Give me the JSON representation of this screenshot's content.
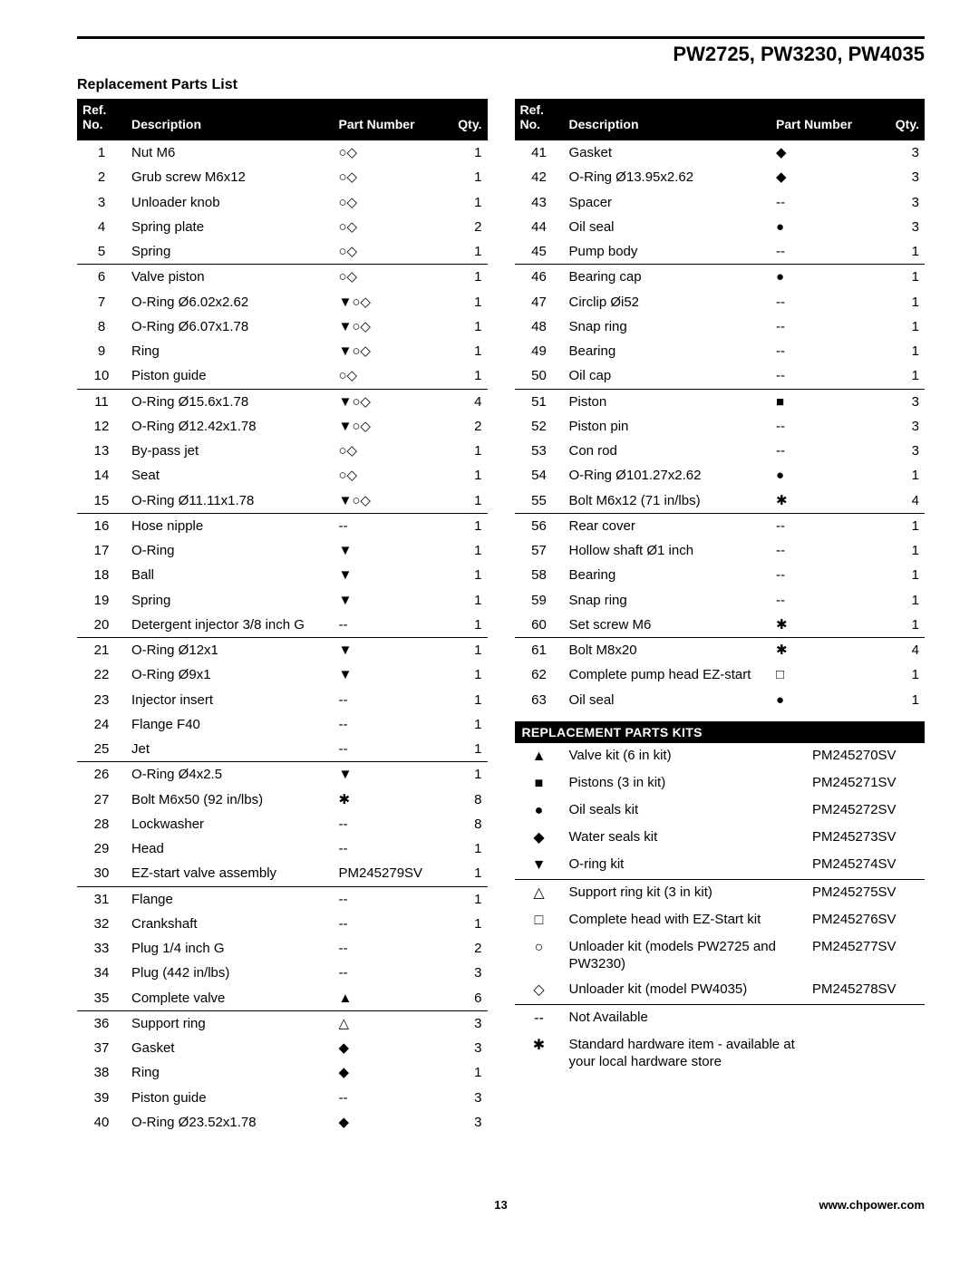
{
  "header": {
    "models": "PW2725, PW3230, PW4035"
  },
  "section": {
    "title": "Replacement Parts List"
  },
  "colhdr": {
    "ref_line1": "Ref.",
    "ref_line2": "No.",
    "desc": "Description",
    "part": "Part Number",
    "qty": "Qty."
  },
  "left": {
    "rows": [
      {
        "n": "1",
        "d": "Nut M6",
        "p": "○◇",
        "q": "1"
      },
      {
        "n": "2",
        "d": "Grub screw M6x12",
        "p": "○◇",
        "q": "1"
      },
      {
        "n": "3",
        "d": "Unloader knob",
        "p": "○◇",
        "q": "1"
      },
      {
        "n": "4",
        "d": "Spring plate",
        "p": "○◇",
        "q": "2"
      },
      {
        "n": "5",
        "d": "Spring",
        "p": "○◇",
        "q": "1",
        "sep": true
      },
      {
        "n": "6",
        "d": "Valve piston",
        "p": "○◇",
        "q": "1"
      },
      {
        "n": "7",
        "d": "O-Ring Ø6.02x2.62",
        "p": "▼○◇",
        "q": "1"
      },
      {
        "n": "8",
        "d": "O-Ring Ø6.07x1.78",
        "p": "▼○◇",
        "q": "1"
      },
      {
        "n": "9",
        "d": "Ring",
        "p": "▼○◇",
        "q": "1"
      },
      {
        "n": "10",
        "d": "Piston guide",
        "p": "○◇",
        "q": "1",
        "sep": true
      },
      {
        "n": "11",
        "d": "O-Ring Ø15.6x1.78",
        "p": "▼○◇",
        "q": "4"
      },
      {
        "n": "12",
        "d": "O-Ring Ø12.42x1.78",
        "p": "▼○◇",
        "q": "2"
      },
      {
        "n": "13",
        "d": "By-pass jet",
        "p": "○◇",
        "q": "1"
      },
      {
        "n": "14",
        "d": "Seat",
        "p": "○◇",
        "q": "1"
      },
      {
        "n": "15",
        "d": "O-Ring Ø11.11x1.78",
        "p": "▼○◇",
        "q": "1",
        "sep": true
      },
      {
        "n": "16",
        "d": "Hose nipple",
        "p": "--",
        "q": "1"
      },
      {
        "n": "17",
        "d": "O-Ring",
        "p": "▼",
        "q": "1"
      },
      {
        "n": "18",
        "d": "Ball",
        "p": "▼",
        "q": "1"
      },
      {
        "n": "19",
        "d": "Spring",
        "p": "▼",
        "q": "1"
      },
      {
        "n": "20",
        "d": "Detergent injector 3/8 inch G",
        "p": "--",
        "q": "1",
        "sep": true
      },
      {
        "n": "21",
        "d": "O-Ring Ø12x1",
        "p": "▼",
        "q": "1"
      },
      {
        "n": "22",
        "d": "O-Ring Ø9x1",
        "p": "▼",
        "q": "1"
      },
      {
        "n": "23",
        "d": "Injector insert",
        "p": "--",
        "q": "1"
      },
      {
        "n": "24",
        "d": "Flange F40",
        "p": "--",
        "q": "1"
      },
      {
        "n": "25",
        "d": "Jet",
        "p": "--",
        "q": "1",
        "sep": true
      },
      {
        "n": "26",
        "d": "O-Ring Ø4x2.5",
        "p": "▼",
        "q": "1"
      },
      {
        "n": "27",
        "d": "Bolt M6x50 (92 in/lbs)",
        "p": "✱",
        "q": "8"
      },
      {
        "n": "28",
        "d": "Lockwasher",
        "p": "--",
        "q": "8"
      },
      {
        "n": "29",
        "d": "Head",
        "p": "--",
        "q": "1"
      },
      {
        "n": "30",
        "d": "EZ-start valve assembly",
        "p": "PM245279SV",
        "q": "1",
        "sep": true
      },
      {
        "n": "31",
        "d": "Flange",
        "p": "--",
        "q": "1"
      },
      {
        "n": "32",
        "d": "Crankshaft",
        "p": "--",
        "q": "1"
      },
      {
        "n": "33",
        "d": "Plug 1/4 inch G",
        "p": "--",
        "q": "2"
      },
      {
        "n": "34",
        "d": "Plug (442 in/lbs)",
        "p": "--",
        "q": "3"
      },
      {
        "n": "35",
        "d": "Complete valve",
        "p": "▲",
        "q": "6",
        "sep": true
      },
      {
        "n": "36",
        "d": "Support ring",
        "p": "△",
        "q": "3"
      },
      {
        "n": "37",
        "d": "Gasket",
        "p": "◆",
        "q": "3"
      },
      {
        "n": "38",
        "d": "Ring",
        "p": "◆",
        "q": "1"
      },
      {
        "n": "39",
        "d": "Piston guide",
        "p": "--",
        "q": "3"
      },
      {
        "n": "40",
        "d": "O-Ring Ø23.52x1.78",
        "p": "◆",
        "q": "3"
      }
    ]
  },
  "right": {
    "rows": [
      {
        "n": "41",
        "d": "Gasket",
        "p": "◆",
        "q": "3"
      },
      {
        "n": "42",
        "d": "O-Ring Ø13.95x2.62",
        "p": "◆",
        "q": "3"
      },
      {
        "n": "43",
        "d": "Spacer",
        "p": "--",
        "q": "3"
      },
      {
        "n": "44",
        "d": "Oil seal",
        "p": "●",
        "q": "3"
      },
      {
        "n": "45",
        "d": "Pump body",
        "p": "--",
        "q": "1",
        "sep": true
      },
      {
        "n": "46",
        "d": "Bearing cap",
        "p": "●",
        "q": "1"
      },
      {
        "n": "47",
        "d": "Circlip Øi52",
        "p": "--",
        "q": "1"
      },
      {
        "n": "48",
        "d": "Snap ring",
        "p": "--",
        "q": "1"
      },
      {
        "n": "49",
        "d": "Bearing",
        "p": "--",
        "q": "1"
      },
      {
        "n": "50",
        "d": "Oil cap",
        "p": "--",
        "q": "1",
        "sep": true
      },
      {
        "n": "51",
        "d": "Piston",
        "p": "■",
        "q": "3"
      },
      {
        "n": "52",
        "d": "Piston pin",
        "p": "--",
        "q": "3"
      },
      {
        "n": "53",
        "d": "Con rod",
        "p": "--",
        "q": "3"
      },
      {
        "n": "54",
        "d": "O-Ring Ø101.27x2.62",
        "p": "●",
        "q": "1"
      },
      {
        "n": "55",
        "d": "Bolt M6x12 (71 in/lbs)",
        "p": "✱",
        "q": "4",
        "sep": true
      },
      {
        "n": "56",
        "d": "Rear cover",
        "p": "--",
        "q": "1"
      },
      {
        "n": "57",
        "d": "Hollow shaft Ø1 inch",
        "p": "--",
        "q": "1"
      },
      {
        "n": "58",
        "d": "Bearing",
        "p": "--",
        "q": "1"
      },
      {
        "n": "59",
        "d": "Snap ring",
        "p": "--",
        "q": "1"
      },
      {
        "n": "60",
        "d": "Set screw M6",
        "p": "✱",
        "q": "1",
        "sep": true
      },
      {
        "n": "61",
        "d": "Bolt M8x20",
        "p": "✱",
        "q": "4"
      },
      {
        "n": "62",
        "d": "Complete pump head EZ-start",
        "p": "□",
        "q": "1"
      },
      {
        "n": "63",
        "d": "Oil seal",
        "p": "●",
        "q": "1"
      }
    ]
  },
  "kits": {
    "title": "REPLACEMENT PARTS KITS",
    "rows": [
      {
        "s": "▲",
        "d": "Valve kit (6 in kit)",
        "p": "PM245270SV"
      },
      {
        "s": "■",
        "d": "Pistons (3 in kit)",
        "p": "PM245271SV"
      },
      {
        "s": "●",
        "d": "Oil seals kit",
        "p": "PM245272SV"
      },
      {
        "s": "◆",
        "d": "Water seals kit",
        "p": "PM245273SV"
      },
      {
        "s": "▼",
        "d": "O-ring kit",
        "p": "PM245274SV",
        "sep": true
      },
      {
        "s": "△",
        "d": "Support ring kit (3 in kit)",
        "p": "PM245275SV"
      },
      {
        "s": "□",
        "d": "Complete head with EZ-Start kit",
        "p": "PM245276SV"
      },
      {
        "s": "○",
        "d": "Unloader kit (models PW2725 and PW3230)",
        "p": "PM245277SV"
      },
      {
        "s": "◇",
        "d": "Unloader kit (model PW4035)",
        "p": "PM245278SV",
        "sep": true
      },
      {
        "s": "--",
        "d": "Not Available",
        "p": ""
      },
      {
        "s": "✱",
        "d": "Standard hardware item - available at your local hardware store",
        "p": ""
      }
    ]
  },
  "footer": {
    "page": "13",
    "site": "www.chpower.com"
  }
}
